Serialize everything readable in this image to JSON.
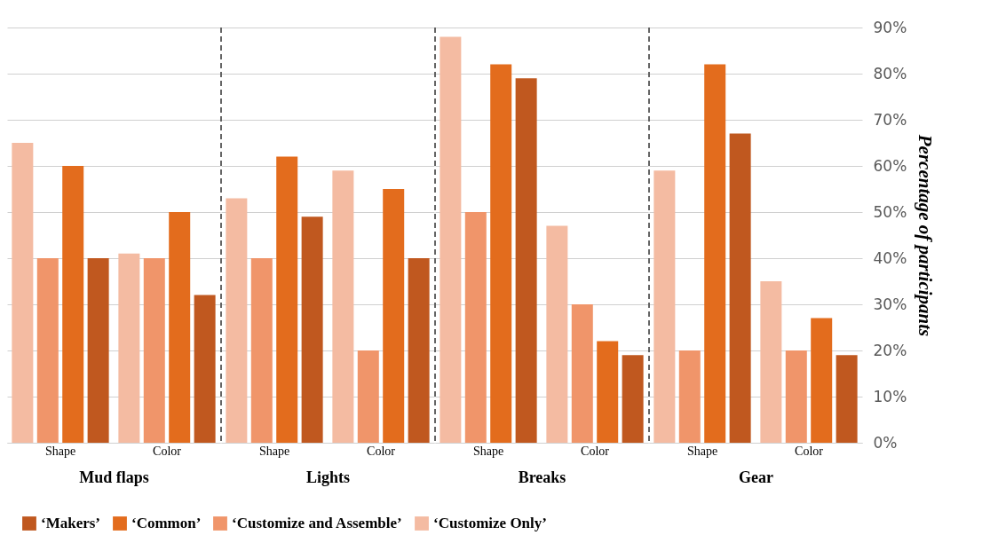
{
  "chart_data": [
    {
      "type": "bar",
      "xlabel": "Mud flaps",
      "categories": [
        "Shape",
        "Color"
      ],
      "series": [
        {
          "name": "‘Customize Only’",
          "color": "#f4bba2",
          "values": [
            65,
            41
          ]
        },
        {
          "name": "‘Customize and Assemble’",
          "color": "#f0956a",
          "values": [
            40,
            40
          ]
        },
        {
          "name": "‘Common’",
          "color": "#e36c1d",
          "values": [
            60,
            50
          ]
        },
        {
          "name": "‘Makers’",
          "color": "#c0581f",
          "values": [
            40,
            32
          ]
        }
      ],
      "ylim": [
        0,
        90
      ],
      "yticks": [
        0,
        10,
        20,
        30,
        40,
        50,
        60,
        70,
        80,
        90
      ],
      "grid": "y",
      "legend": "bottom",
      "tick_labels": "x"
    },
    {
      "type": "bar",
      "xlabel": "Lights",
      "categories": [
        "Shape",
        "Color"
      ],
      "series": [
        {
          "color": "#f4bba2",
          "values": [
            53,
            59
          ]
        },
        {
          "color": "#f0956a",
          "values": [
            40,
            20
          ]
        },
        {
          "color": "#e36c1d",
          "values": [
            62,
            55
          ]
        },
        {
          "color": "#c0581f",
          "values": [
            49,
            40
          ]
        }
      ],
      "ylim": [
        0,
        90
      ],
      "yticks": [
        0,
        10,
        20,
        30,
        40,
        50,
        60,
        70,
        80,
        90
      ],
      "grid": "y",
      "tick_labels": "x"
    },
    {
      "type": "bar",
      "xlabel": "Breaks",
      "categories": [
        "Shape",
        "Color"
      ],
      "series": [
        {
          "color": "#f4bba2",
          "values": [
            88,
            47
          ]
        },
        {
          "color": "#f0956a",
          "values": [
            50,
            30
          ]
        },
        {
          "color": "#e36c1d",
          "values": [
            82,
            22
          ]
        },
        {
          "color": "#c0581f",
          "values": [
            79,
            19
          ]
        }
      ],
      "ylim": [
        0,
        90
      ],
      "yticks": [
        0,
        10,
        20,
        30,
        40,
        50,
        60,
        70,
        80,
        90
      ],
      "grid": "y",
      "tick_labels": "x"
    },
    {
      "type": "bar",
      "xlabel": "Gear",
      "ylabel": "Percentage of participants",
      "categories": [
        "Shape",
        "Color"
      ],
      "series": [
        {
          "color": "#f4bba2",
          "values": [
            59,
            35
          ]
        },
        {
          "color": "#f0956a",
          "values": [
            20,
            20
          ]
        },
        {
          "color": "#e36c1d",
          "values": [
            82,
            27
          ]
        },
        {
          "color": "#c0581f",
          "values": [
            67,
            19
          ]
        }
      ],
      "ylim": [
        0,
        90
      ],
      "yticks": [
        {
          "value": 0,
          "label": "0%"
        },
        {
          "value": 10,
          "label": "10%"
        },
        {
          "value": 20,
          "label": "20%"
        },
        {
          "value": 30,
          "label": "30%"
        },
        {
          "value": 40,
          "label": "40%"
        },
        {
          "value": 50,
          "label": "50%"
        },
        {
          "value": 60,
          "label": "60%"
        },
        {
          "value": 70,
          "label": "70%"
        },
        {
          "value": 80,
          "label": "80%"
        },
        {
          "value": 90,
          "label": "90%"
        }
      ],
      "grid": "y"
    }
  ]
}
